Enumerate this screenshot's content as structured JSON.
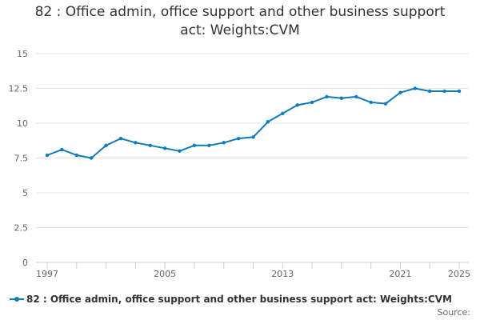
{
  "chart_data": {
    "type": "line",
    "title": "82 : Office admin, office support and other business support act: Weights:CVM",
    "title_lines": [
      "82 : Office admin, office support and other business support",
      "act: Weights:CVM"
    ],
    "xlabel": "",
    "ylabel": "",
    "x_tick_labels": [
      "1997",
      "2005",
      "2013",
      "2021",
      "2025"
    ],
    "y_tick_labels": [
      "0",
      "2.5",
      "5",
      "7.5",
      "10",
      "12.5",
      "15"
    ],
    "y_ticks": [
      0,
      2.5,
      5,
      7.5,
      10,
      12.5,
      15
    ],
    "xlim": [
      1997,
      2025
    ],
    "ylim": [
      0,
      15
    ],
    "grid": "horizontal",
    "legend_position": "bottom",
    "series": [
      {
        "name": "82 : Office admin, office support and other business support act: Weights:CVM",
        "color": "#0e7bbe",
        "x": [
          1997,
          1998,
          1999,
          2000,
          2001,
          2002,
          2003,
          2004,
          2005,
          2006,
          2007,
          2008,
          2009,
          2010,
          2011,
          2012,
          2013,
          2014,
          2015,
          2016,
          2017,
          2018,
          2019,
          2020,
          2021,
          2022,
          2023,
          2024,
          2025
        ],
        "values": [
          7.7,
          8.1,
          7.7,
          7.5,
          8.4,
          8.9,
          8.6,
          8.4,
          8.2,
          8.0,
          8.4,
          8.4,
          8.6,
          8.9,
          9.0,
          10.1,
          10.7,
          11.3,
          11.5,
          11.9,
          11.8,
          11.9,
          11.5,
          11.4,
          12.2,
          12.5,
          12.3,
          12.3,
          12.3
        ]
      }
    ]
  },
  "source_label": "Source:"
}
